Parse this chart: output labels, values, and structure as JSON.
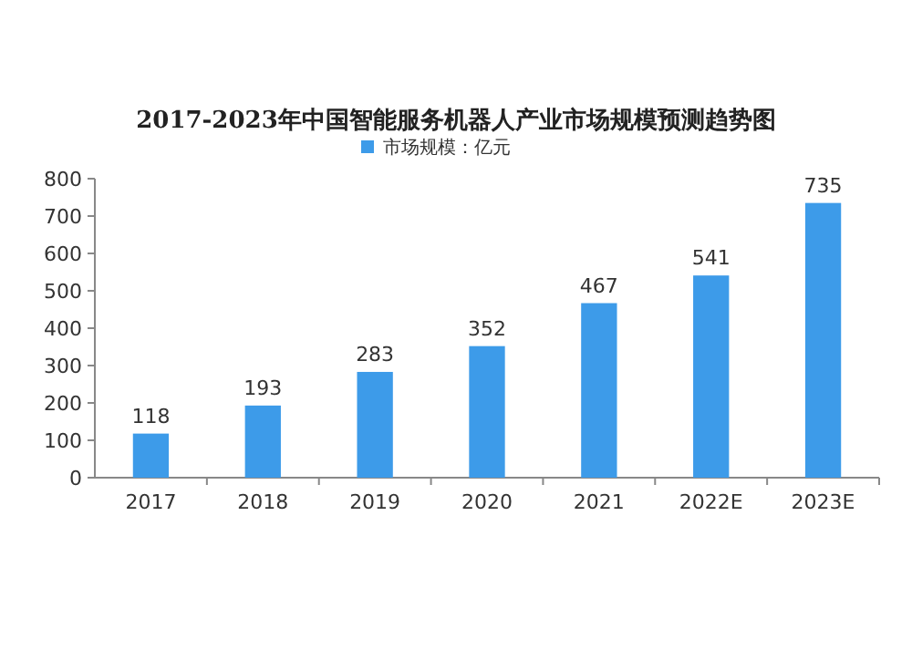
{
  "chart_data": {
    "type": "bar",
    "title": "2017-2023年中国智能服务机器人产业市场规模预测趋势图",
    "categories": [
      "2017",
      "2018",
      "2019",
      "2020",
      "2021",
      "2022E",
      "2023E"
    ],
    "series": [
      {
        "name": "市场规模：亿元",
        "color": "#3d9be9",
        "values": [
          118,
          193,
          283,
          352,
          467,
          541,
          735
        ]
      }
    ],
    "ylim": [
      0,
      800
    ],
    "yticks": [
      0,
      100,
      200,
      300,
      400,
      500,
      600,
      700,
      800
    ],
    "data_labels": true,
    "legend": "top",
    "grid": false
  }
}
